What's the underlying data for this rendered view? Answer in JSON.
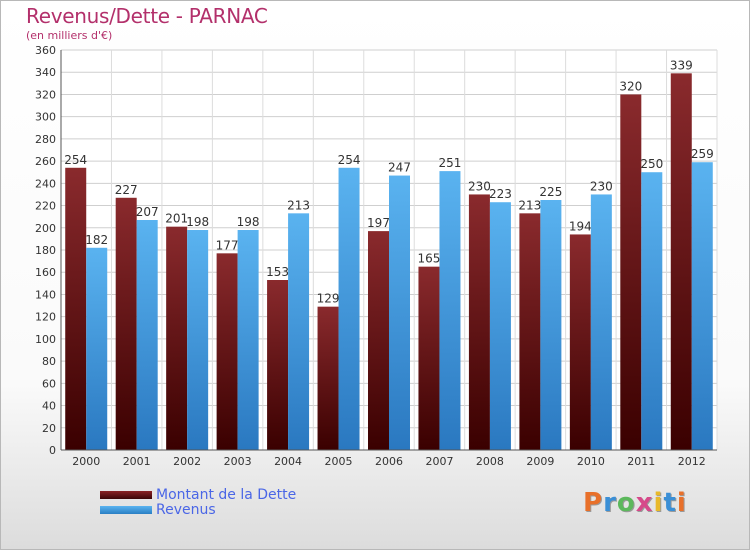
{
  "chart_data": {
    "type": "bar",
    "title": "Revenus/Dette - PARNAC",
    "subtitle": "(en milliers d'€)",
    "categories": [
      "2000",
      "2001",
      "2002",
      "2003",
      "2004",
      "2005",
      "2006",
      "2007",
      "2008",
      "2009",
      "2010",
      "2011",
      "2012"
    ],
    "series": [
      {
        "name": "Montant de la Dette",
        "color": "#7a1a1d",
        "values": [
          254,
          227,
          201,
          177,
          153,
          129,
          197,
          165,
          230,
          213,
          194,
          320,
          339
        ]
      },
      {
        "name": "Revenus",
        "color": "#4aa3e6",
        "values": [
          182,
          207,
          198,
          198,
          213,
          254,
          247,
          251,
          223,
          225,
          230,
          250,
          259
        ]
      }
    ],
    "ylim": [
      0,
      360
    ],
    "yticks": [
      0,
      20,
      40,
      60,
      80,
      100,
      120,
      140,
      160,
      180,
      200,
      220,
      240,
      260,
      280,
      300,
      320,
      340,
      360
    ],
    "grid": true,
    "legend": "bottom-left"
  },
  "branding": {
    "logo_text": "Proxiti",
    "letter_colors": [
      "#e8702a",
      "#3a8fd6",
      "#5cb85c",
      "#d64a8a",
      "#e8b92a",
      "#3a8fd6",
      "#e8702a"
    ]
  }
}
